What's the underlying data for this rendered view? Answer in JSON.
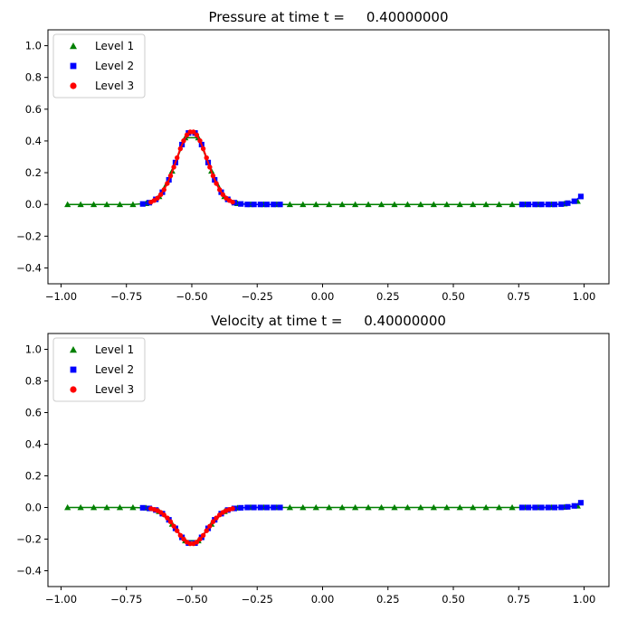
{
  "chart_data": [
    {
      "type": "line",
      "title": "Pressure at time t =     0.40000000",
      "xlim": [
        -1.05,
        1.095
      ],
      "ylim": [
        -0.5,
        1.1
      ],
      "xticks": [
        -1.0,
        -0.75,
        -0.5,
        -0.25,
        0.0,
        0.25,
        0.5,
        0.75,
        1.0
      ],
      "xtick_labels": [
        "−1.00",
        "−0.75",
        "−0.50",
        "−0.25",
        "0.00",
        "0.25",
        "0.50",
        "0.75",
        "1.00"
      ],
      "yticks": [
        -0.4,
        -0.2,
        0.0,
        0.2,
        0.4,
        0.6,
        0.8,
        1.0
      ],
      "ytick_labels": [
        "−0.4",
        "−0.2",
        "0.0",
        "0.2",
        "0.4",
        "0.6",
        "0.8",
        "1.0"
      ],
      "legend": "top-left",
      "grid": false,
      "series": [
        {
          "name": "Level 1",
          "color": "#008000",
          "marker": "triangle",
          "x": [
            -0.975,
            -0.925,
            -0.875,
            -0.825,
            -0.775,
            -0.725,
            -0.675,
            -0.625,
            -0.575,
            -0.525,
            -0.475,
            -0.425,
            -0.375,
            -0.325,
            -0.275,
            -0.225,
            -0.175,
            -0.125,
            -0.075,
            -0.025,
            0.025,
            0.075,
            0.125,
            0.175,
            0.225,
            0.275,
            0.325,
            0.375,
            0.425,
            0.475,
            0.525,
            0.575,
            0.625,
            0.675,
            0.725,
            0.775,
            0.825,
            0.875,
            0.925,
            0.975
          ],
          "y": [
            0,
            0,
            0,
            0,
            0,
            0,
            0.006,
            0.05,
            0.21,
            0.42,
            0.42,
            0.21,
            0.05,
            0.006,
            0,
            0,
            0,
            0,
            0,
            0,
            0,
            0,
            0,
            0,
            0,
            0,
            0,
            0,
            0,
            0,
            0,
            0,
            0,
            0,
            0,
            0,
            0,
            0,
            0.004,
            0.02
          ]
        },
        {
          "name": "Level 2",
          "color": "#0000ff",
          "marker": "square",
          "x": [
            -0.6875,
            -0.6625,
            -0.6375,
            -0.6125,
            -0.5875,
            -0.5625,
            -0.5375,
            -0.5125,
            -0.4875,
            -0.4625,
            -0.4375,
            -0.4125,
            -0.3875,
            -0.3625,
            -0.3375,
            -0.3125,
            -0.2875,
            -0.2625,
            -0.2375,
            -0.2125,
            -0.1875,
            -0.1625,
            null,
            0.7625,
            0.7875,
            0.8125,
            0.8375,
            0.8625,
            0.8875,
            0.9125,
            0.9375,
            0.9625,
            0.9875
          ],
          "y": [
            0.003,
            0.011,
            0.032,
            0.077,
            0.155,
            0.264,
            0.377,
            0.45,
            0.45,
            0.377,
            0.264,
            0.155,
            0.077,
            0.032,
            0.011,
            0.003,
            0,
            0,
            0,
            0,
            0,
            0,
            null,
            0,
            0,
            0,
            0,
            0,
            0,
            0.002,
            0.008,
            0.02,
            0.05
          ]
        },
        {
          "name": "Level 3",
          "color": "#ff0000",
          "marker": "circle",
          "x": [
            -0.65625,
            -0.64375,
            -0.63125,
            -0.61875,
            -0.60625,
            -0.59375,
            -0.58125,
            -0.56875,
            -0.55625,
            -0.54375,
            -0.53125,
            -0.51875,
            -0.50625,
            -0.49375,
            -0.48125,
            -0.46875,
            -0.45625,
            -0.44375,
            -0.43125,
            -0.41875,
            -0.40625,
            -0.39375,
            -0.38125,
            -0.36875,
            -0.35625,
            -0.34375
          ],
          "y": [
            0.0145,
            0.025,
            0.04,
            0.062,
            0.093,
            0.132,
            0.18,
            0.235,
            0.294,
            0.351,
            0.401,
            0.438,
            0.457,
            0.457,
            0.438,
            0.401,
            0.351,
            0.294,
            0.235,
            0.18,
            0.132,
            0.093,
            0.062,
            0.04,
            0.025,
            0.0145
          ]
        }
      ]
    },
    {
      "type": "line",
      "title": "Velocity at time t =     0.40000000",
      "xlim": [
        -1.05,
        1.095
      ],
      "ylim": [
        -0.5,
        1.1
      ],
      "xticks": [
        -1.0,
        -0.75,
        -0.5,
        -0.25,
        0.0,
        0.25,
        0.5,
        0.75,
        1.0
      ],
      "xtick_labels": [
        "−1.00",
        "−0.75",
        "−0.50",
        "−0.25",
        "0.00",
        "0.25",
        "0.50",
        "0.75",
        "1.00"
      ],
      "yticks": [
        -0.4,
        -0.2,
        0.0,
        0.2,
        0.4,
        0.6,
        0.8,
        1.0
      ],
      "ytick_labels": [
        "−0.4",
        "−0.2",
        "0.0",
        "0.2",
        "0.4",
        "0.6",
        "0.8",
        "1.0"
      ],
      "legend": "top-left",
      "grid": false,
      "series": [
        {
          "name": "Level 1",
          "color": "#008000",
          "marker": "triangle",
          "x": [
            -0.975,
            -0.925,
            -0.875,
            -0.825,
            -0.775,
            -0.725,
            -0.675,
            -0.625,
            -0.575,
            -0.525,
            -0.475,
            -0.425,
            -0.375,
            -0.325,
            -0.275,
            -0.225,
            -0.175,
            -0.125,
            -0.075,
            -0.025,
            0.025,
            0.075,
            0.125,
            0.175,
            0.225,
            0.275,
            0.325,
            0.375,
            0.425,
            0.475,
            0.525,
            0.575,
            0.625,
            0.675,
            0.725,
            0.775,
            0.825,
            0.875,
            0.925,
            0.975
          ],
          "y": [
            0,
            0,
            0,
            0,
            0,
            0,
            -0.003,
            -0.025,
            -0.105,
            -0.21,
            -0.21,
            -0.105,
            -0.025,
            -0.003,
            0,
            0,
            0,
            0,
            0,
            0,
            0,
            0,
            0,
            0,
            0,
            0,
            0,
            0,
            0,
            0,
            0,
            0,
            0,
            0,
            0,
            0,
            0,
            0,
            0.002,
            0.01
          ]
        },
        {
          "name": "Level 2",
          "color": "#0000ff",
          "marker": "square",
          "x": [
            -0.6875,
            -0.6625,
            -0.6375,
            -0.6125,
            -0.5875,
            -0.5625,
            -0.5375,
            -0.5125,
            -0.4875,
            -0.4625,
            -0.4375,
            -0.4125,
            -0.3875,
            -0.3625,
            -0.3375,
            -0.3125,
            -0.2875,
            -0.2625,
            -0.2375,
            -0.2125,
            -0.1875,
            -0.1625,
            null,
            0.7625,
            0.7875,
            0.8125,
            0.8375,
            0.8625,
            0.8875,
            0.9125,
            0.9375,
            0.9625,
            0.9875
          ],
          "y": [
            -0.002,
            -0.006,
            -0.016,
            -0.039,
            -0.078,
            -0.132,
            -0.189,
            -0.225,
            -0.225,
            -0.189,
            -0.132,
            -0.078,
            -0.039,
            -0.016,
            -0.006,
            -0.002,
            0,
            0,
            0,
            0,
            0,
            0,
            null,
            0,
            0,
            0,
            0,
            0,
            0,
            0.001,
            0.004,
            0.01,
            0.03
          ]
        },
        {
          "name": "Level 3",
          "color": "#ff0000",
          "marker": "circle",
          "x": [
            -0.65625,
            -0.64375,
            -0.63125,
            -0.61875,
            -0.60625,
            -0.59375,
            -0.58125,
            -0.56875,
            -0.55625,
            -0.54375,
            -0.53125,
            -0.51875,
            -0.50625,
            -0.49375,
            -0.48125,
            -0.46875,
            -0.45625,
            -0.44375,
            -0.43125,
            -0.41875,
            -0.40625,
            -0.39375,
            -0.38125,
            -0.36875,
            -0.35625,
            -0.34375
          ],
          "y": [
            -0.007,
            -0.0125,
            -0.02,
            -0.031,
            -0.047,
            -0.066,
            -0.09,
            -0.118,
            -0.147,
            -0.176,
            -0.2,
            -0.219,
            -0.229,
            -0.229,
            -0.219,
            -0.2,
            -0.176,
            -0.147,
            -0.118,
            -0.09,
            -0.066,
            -0.047,
            -0.031,
            -0.02,
            -0.0125,
            -0.007
          ]
        }
      ]
    }
  ]
}
